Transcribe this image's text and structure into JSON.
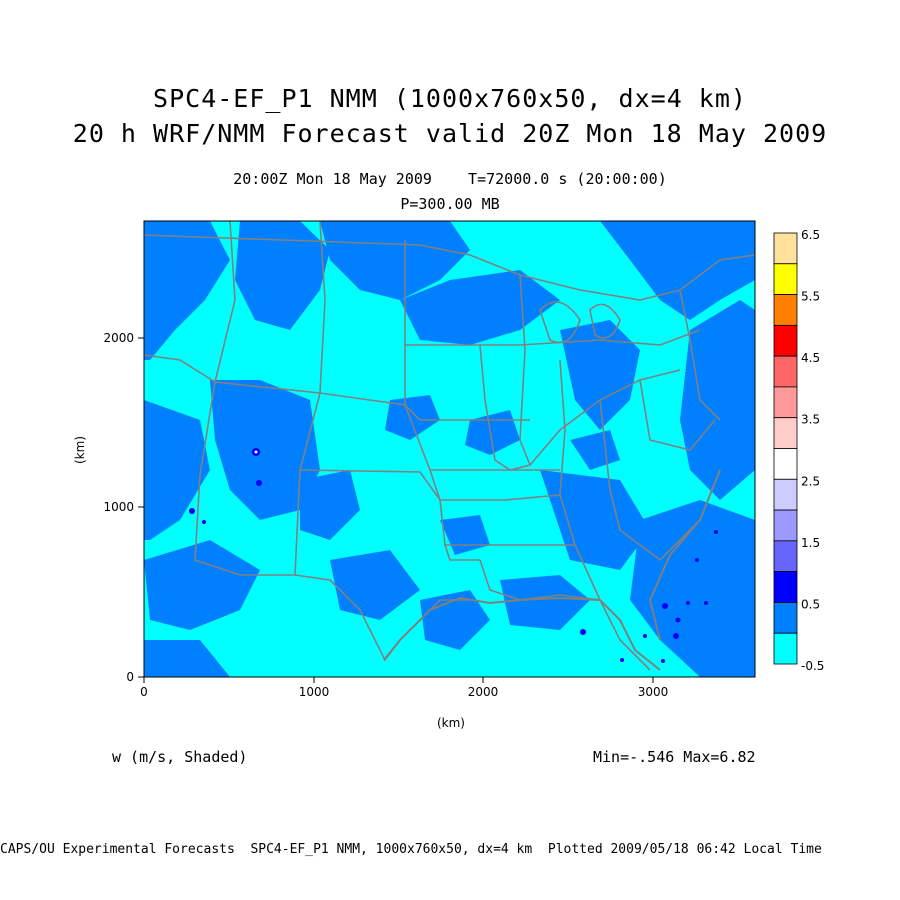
{
  "header": {
    "title_line1": "SPC4-EF_P1 NMM (1000x760x50, dx=4 km)",
    "title_line2": "20 h WRF/NMM Forecast valid 20Z Mon 18 May 2009",
    "time_line": "20:00Z Mon 18 May 2009    T=72000.0 s (20:00:00)",
    "level_line": "P=300.00 MB"
  },
  "axes": {
    "x_label": "(km)",
    "y_label": "(km)",
    "x_ticks": [
      "0",
      "1000",
      "2000",
      "3000"
    ],
    "y_ticks": [
      "0",
      "1000",
      "2000"
    ],
    "x_range_km": [
      0,
      3600
    ],
    "y_range_km": [
      0,
      2700
    ]
  },
  "colorbar": {
    "labels": [
      "6.5",
      "5.5",
      "4.5",
      "3.5",
      "2.5",
      "1.5",
      "0.5",
      "-0.5"
    ],
    "colors": [
      "#ffe19b",
      "#ffff00",
      "#ff8000",
      "#ff0000",
      "#ff6666",
      "#ff9999",
      "#ffcccc",
      "#ffffff",
      "#ccccff",
      "#9999ff",
      "#6666ff",
      "#0000ff",
      "#0080ff",
      "#00ffff"
    ]
  },
  "field": {
    "variable_label": "w (m/s, Shaded)",
    "min_max": "Min=-.546 Max=6.82"
  },
  "footer": {
    "text": "CAPS/OU Experimental Forecasts  SPC4-EF_P1 NMM, 1000x760x50, dx=4 km  Plotted 2009/05/18 06:42 Local Time"
  },
  "map_colors": {
    "light_shade": "#00ffff",
    "dark_shade": "#0080ff",
    "boundaries": "#808080"
  }
}
